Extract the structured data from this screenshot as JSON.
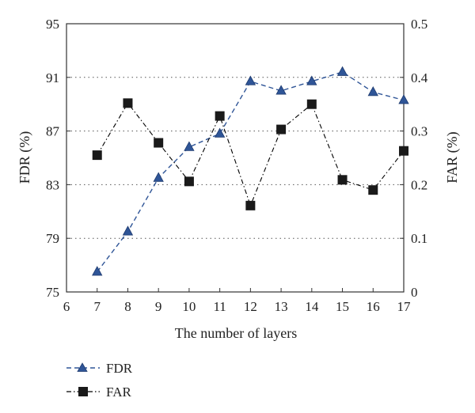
{
  "chart_data": {
    "type": "line",
    "xlabel": "The number of layers",
    "ylabel_left": "FDR (%)",
    "ylabel_right": "FAR (%)",
    "xlim": [
      6,
      17
    ],
    "xticks": [
      "6",
      "7",
      "8",
      "9",
      "10",
      "11",
      "12",
      "13",
      "14",
      "15",
      "16",
      "17"
    ],
    "ylim_left": [
      75,
      95
    ],
    "yticks_left": [
      "75",
      "79",
      "83",
      "87",
      "91",
      "95"
    ],
    "ylim_right": [
      0,
      0.5
    ],
    "yticks_right": [
      "0",
      "0.1",
      "0.2",
      "0.3",
      "0.4",
      "0.5"
    ],
    "grid": "horizontal dotted",
    "legend_position": "bottom-left",
    "x": [
      7,
      8,
      9,
      10,
      11,
      12,
      13,
      14,
      15,
      16,
      17
    ],
    "series": [
      {
        "name": "FDR",
        "axis": "left",
        "color": "#2f5597",
        "marker": "triangle",
        "line_style": "dashed",
        "values": [
          76.5,
          79.5,
          83.5,
          85.8,
          86.8,
          90.7,
          90.0,
          90.7,
          91.4,
          89.9,
          89.3
        ]
      },
      {
        "name": "FAR",
        "axis": "right",
        "color": "#000000",
        "marker": "square",
        "line_style": "dash-dot",
        "values": [
          0.255,
          0.352,
          0.278,
          0.206,
          0.328,
          0.161,
          0.303,
          0.35,
          0.209,
          0.19,
          0.263
        ]
      }
    ]
  }
}
